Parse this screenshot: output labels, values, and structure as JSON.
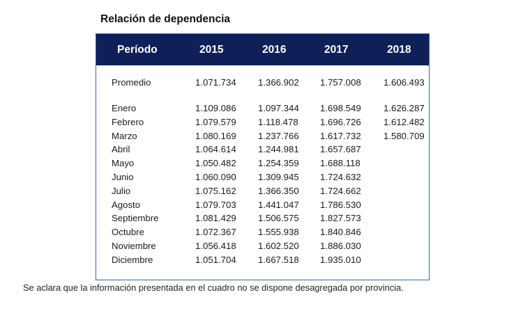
{
  "title": "Relación de dependencia",
  "table": {
    "headers": [
      "Período",
      "2015",
      "2016",
      "2017",
      "2018"
    ],
    "average_row": {
      "label": "Promedio",
      "values": [
        "1.071.734",
        "1.366.902",
        "1.757.008",
        "1.606.493"
      ]
    },
    "rows": [
      {
        "label": "Enero",
        "values": [
          "1.109.086",
          "1.097.344",
          "1.698.549",
          "1.626.287"
        ]
      },
      {
        "label": "Febrero",
        "values": [
          "1.079.579",
          "1.118.478",
          "1.696.726",
          "1.612.482"
        ]
      },
      {
        "label": "Marzo",
        "values": [
          "1.080.169",
          "1.237.766",
          "1.617.732",
          "1.580.709"
        ]
      },
      {
        "label": "Abril",
        "values": [
          "1.064.614",
          "1.244.981",
          "1.657.687",
          ""
        ]
      },
      {
        "label": "Mayo",
        "values": [
          "1.050.482",
          "1.254.359",
          "1.688.118",
          ""
        ]
      },
      {
        "label": "Junio",
        "values": [
          "1.060.090",
          "1.309.945",
          "1.724.632",
          ""
        ]
      },
      {
        "label": "Julio",
        "values": [
          "1.075.162",
          "1.366.350",
          "1.724.662",
          ""
        ]
      },
      {
        "label": "Agosto",
        "values": [
          "1.079.703",
          "1.441.047",
          "1.786.530",
          ""
        ]
      },
      {
        "label": "Septiembre",
        "values": [
          "1.081.429",
          "1.506.575",
          "1.827.573",
          ""
        ]
      },
      {
        "label": "Octubre",
        "values": [
          "1.072.367",
          "1.555.938",
          "1.840.846",
          ""
        ]
      },
      {
        "label": "Noviembre",
        "values": [
          "1.056.418",
          "1.602.520",
          "1.886.030",
          ""
        ]
      },
      {
        "label": "Diciembre",
        "values": [
          "1.051.704",
          "1.667.518",
          "1.935.010",
          ""
        ]
      }
    ]
  },
  "footnote": "Se aclara que la información presentada en el cuadro no se dispone desagregada por provincia.",
  "colors": {
    "header_bg": "#0f1f57",
    "frame_border": "#3a62a8"
  }
}
